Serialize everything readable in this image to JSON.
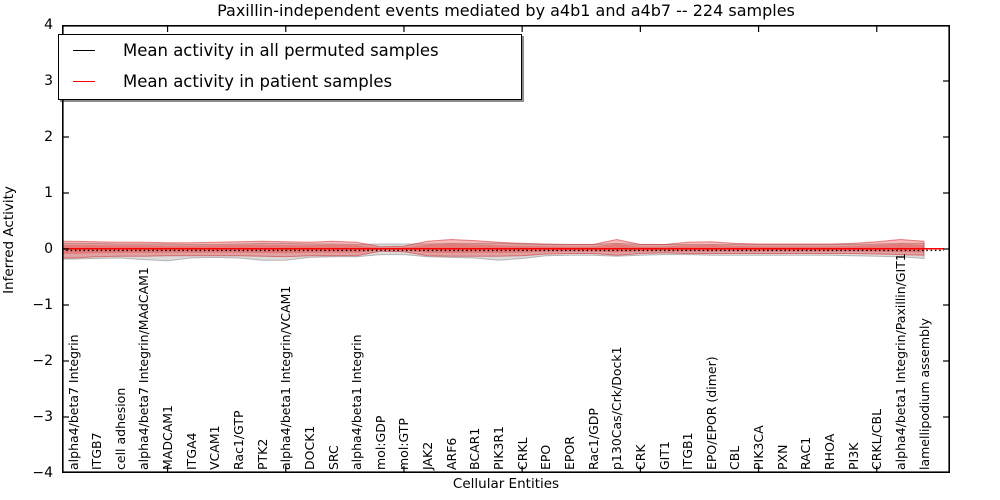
{
  "title": "Paxillin-independent events mediated by a4b1 and a4b7 -- 224 samples",
  "axes": {
    "xlabel": "Cellular Entities",
    "ylabel": "Inferred Activity",
    "ylim": [
      -4,
      4
    ],
    "yticks": [
      {
        "label": "4",
        "value": 4
      },
      {
        "label": "3",
        "value": 3
      },
      {
        "label": "2",
        "value": 2
      },
      {
        "label": "1",
        "value": 1
      },
      {
        "label": "0",
        "value": 0
      },
      {
        "label": "−1",
        "value": -1
      },
      {
        "label": "−2",
        "value": -2
      },
      {
        "label": "−3",
        "value": -3
      },
      {
        "label": "−4",
        "value": -4
      }
    ],
    "xtick_mark_indices": [
      4,
      9,
      14,
      19,
      24,
      29,
      34
    ],
    "frame_color": "#000000"
  },
  "legend": {
    "items": [
      {
        "label": "Mean activity in all permuted samples",
        "color": "#000000",
        "style": "solid"
      },
      {
        "label": "Mean activity in patient samples",
        "color": "#ff0000",
        "style": "solid"
      }
    ]
  },
  "chart_data": {
    "type": "area",
    "title": "Paxillin-independent events mediated by a4b1 and a4b7 -- 224 samples",
    "xlabel": "Cellular Entities",
    "ylabel": "Inferred Activity",
    "ylim": [
      -4,
      4
    ],
    "legend_position": "upper left",
    "grid": false,
    "categories": [
      "alpha4/beta7 Integrin",
      "ITGB7",
      "cell adhesion",
      "alpha4/beta7 Integrin/MAdCAM1",
      "MADCAM1",
      "ITGA4",
      "VCAM1",
      "Rac1/GTP",
      "PTK2",
      "alpha4/beta1 Integrin/VCAM1",
      "DOCK1",
      "SRC",
      "alpha4/beta1 Integrin",
      "mol:GDP",
      "mol:GTP",
      "JAK2",
      "ARF6",
      "BCAR1",
      "PIK3R1",
      "CRKL",
      "EPO",
      "EPOR",
      "Rac1/GDP",
      "p130Cas/Crk/Dock1",
      "CRK",
      "GIT1",
      "ITGB1",
      "EPO/EPOR (dimer)",
      "CBL",
      "PIK3CA",
      "PXN",
      "RAC1",
      "RHOA",
      "PI3K",
      "CRKL/CBL",
      "alpha4/beta1 Integrin/Paxillin/GIT1",
      "lamellipodium assembly"
    ],
    "series": [
      {
        "name": "permuted samples activity range",
        "fill": "rgba(130,130,130,0.28)",
        "edge": "rgba(110,110,110,0.45)",
        "upper": [
          0.1,
          0.1,
          0.09,
          0.09,
          0.09,
          0.08,
          0.08,
          0.09,
          0.1,
          0.1,
          0.09,
          0.09,
          0.08,
          0.09,
          0.09,
          0.09,
          0.1,
          0.1,
          0.1,
          0.09,
          0.08,
          0.08,
          0.08,
          0.1,
          0.08,
          0.08,
          0.08,
          0.08,
          0.08,
          0.08,
          0.08,
          0.08,
          0.08,
          0.08,
          0.09,
          0.1,
          0.1
        ],
        "lower": [
          -0.18,
          -0.17,
          -0.16,
          -0.19,
          -0.21,
          -0.16,
          -0.15,
          -0.16,
          -0.2,
          -0.2,
          -0.15,
          -0.14,
          -0.14,
          -0.1,
          -0.1,
          -0.14,
          -0.15,
          -0.16,
          -0.2,
          -0.17,
          -0.12,
          -0.11,
          -0.11,
          -0.13,
          -0.11,
          -0.1,
          -0.1,
          -0.11,
          -0.11,
          -0.11,
          -0.11,
          -0.11,
          -0.11,
          -0.12,
          -0.13,
          -0.14,
          -0.17
        ]
      },
      {
        "name": "patient samples activity range",
        "fill": "rgba(235,45,45,0.33)",
        "edge": "rgba(205,30,30,0.50)",
        "upper": [
          0.14,
          0.13,
          0.12,
          0.12,
          0.11,
          0.11,
          0.12,
          0.13,
          0.14,
          0.13,
          0.12,
          0.14,
          0.12,
          0.04,
          0.05,
          0.14,
          0.17,
          0.15,
          0.12,
          0.1,
          0.09,
          0.08,
          0.08,
          0.17,
          0.08,
          0.08,
          0.12,
          0.13,
          0.1,
          0.09,
          0.09,
          0.09,
          0.09,
          0.1,
          0.13,
          0.17,
          0.14
        ],
        "lower": [
          -0.16,
          -0.14,
          -0.13,
          -0.13,
          -0.12,
          -0.12,
          -0.12,
          -0.12,
          -0.13,
          -0.14,
          -0.12,
          -0.12,
          -0.12,
          -0.04,
          -0.05,
          -0.12,
          -0.13,
          -0.13,
          -0.13,
          -0.12,
          -0.09,
          -0.08,
          -0.08,
          -0.11,
          -0.08,
          -0.07,
          -0.08,
          -0.08,
          -0.08,
          -0.08,
          -0.08,
          -0.08,
          -0.08,
          -0.08,
          -0.09,
          -0.1,
          -0.11
        ]
      }
    ],
    "inner_core_fraction": 0.55,
    "mean_permuted": {
      "value": -0.025,
      "color": "#000000",
      "linestyle": "dotted"
    },
    "mean_patient": {
      "value": 0.004,
      "color": "#ff0000",
      "linestyle": "solid"
    }
  }
}
